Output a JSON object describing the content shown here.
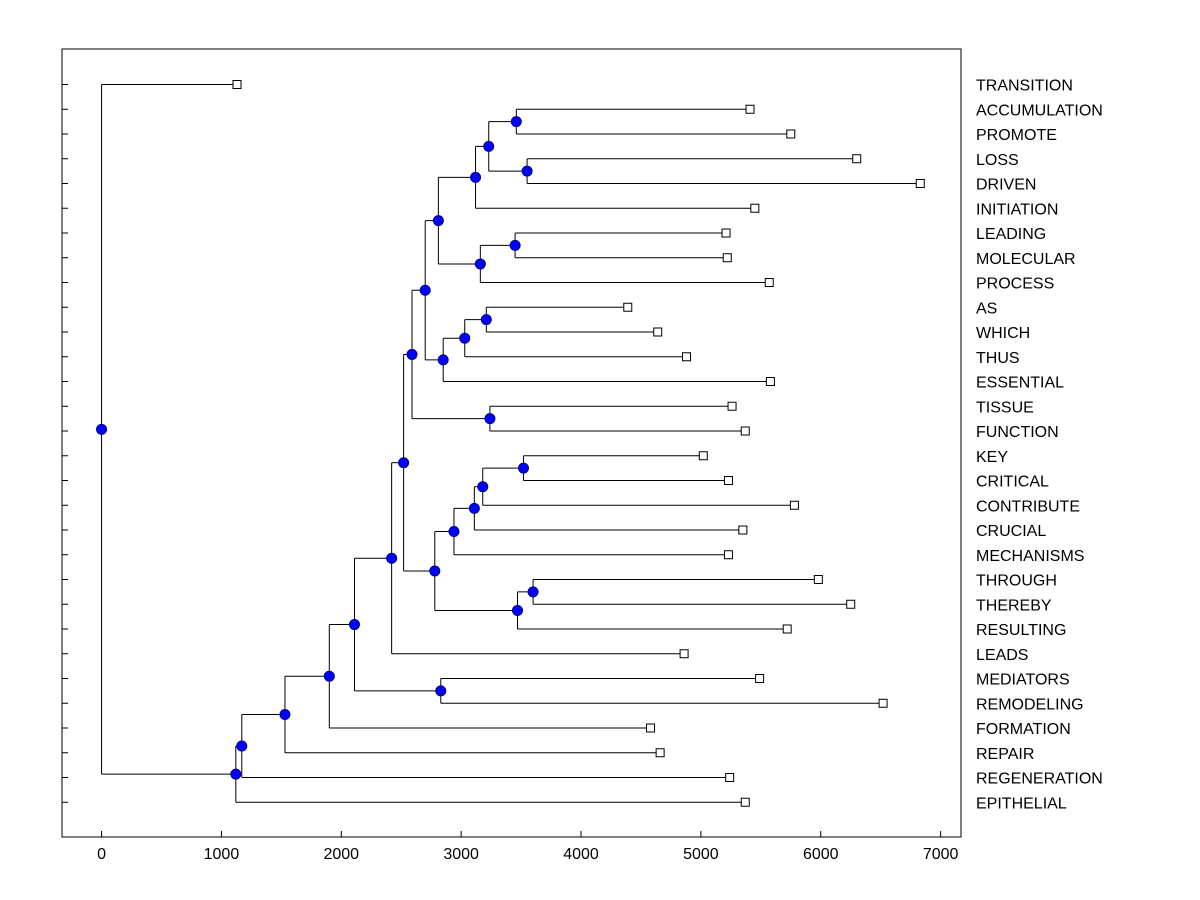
{
  "chart_data": {
    "type": "dendrogram",
    "orientation": "horizontal",
    "title": "",
    "xlabel": "",
    "ylabel": "",
    "xlim": [
      -330,
      7170
    ],
    "xticks": [
      0,
      1000,
      2000,
      3000,
      4000,
      5000,
      6000,
      7000
    ],
    "xtick_labels": [
      "0",
      "1000",
      "2000",
      "3000",
      "4000",
      "5000",
      "6000",
      "7000"
    ],
    "leaves": [
      {
        "label": "TRANSITION",
        "x": 1130
      },
      {
        "label": "ACCUMULATION",
        "x": 5410
      },
      {
        "label": "PROMOTE",
        "x": 5750
      },
      {
        "label": "LOSS",
        "x": 6300
      },
      {
        "label": "DRIVEN",
        "x": 6830
      },
      {
        "label": "INITIATION",
        "x": 5450
      },
      {
        "label": "LEADING",
        "x": 5210
      },
      {
        "label": "MOLECULAR",
        "x": 5220
      },
      {
        "label": "PROCESS",
        "x": 5570
      },
      {
        "label": "AS",
        "x": 4390
      },
      {
        "label": "WHICH",
        "x": 4640
      },
      {
        "label": "THUS",
        "x": 4880
      },
      {
        "label": "ESSENTIAL",
        "x": 5580
      },
      {
        "label": "TISSUE",
        "x": 5260
      },
      {
        "label": "FUNCTION",
        "x": 5370
      },
      {
        "label": "KEY",
        "x": 5020
      },
      {
        "label": "CRITICAL",
        "x": 5230
      },
      {
        "label": "CONTRIBUTE",
        "x": 5780
      },
      {
        "label": "CRUCIAL",
        "x": 5350
      },
      {
        "label": "MECHANISMS",
        "x": 5230
      },
      {
        "label": "THROUGH",
        "x": 5980
      },
      {
        "label": "THEREBY",
        "x": 6250
      },
      {
        "label": "RESULTING",
        "x": 5720
      },
      {
        "label": "LEADS",
        "x": 4860
      },
      {
        "label": "MEDIATORS",
        "x": 5490
      },
      {
        "label": "REMODELING",
        "x": 6520
      },
      {
        "label": "FORMATION",
        "x": 4580
      },
      {
        "label": "REPAIR",
        "x": 4660
      },
      {
        "label": "REGENERATION",
        "x": 5240
      },
      {
        "label": "EPITHELIAL",
        "x": 5370
      }
    ],
    "merges": [
      {
        "id": "m1",
        "x": 3460,
        "children": [
          "L1",
          "L2"
        ]
      },
      {
        "id": "m2",
        "x": 3550,
        "children": [
          "L3",
          "L4"
        ]
      },
      {
        "id": "m3",
        "x": 3230,
        "children": [
          "m1",
          "m2"
        ]
      },
      {
        "id": "m4",
        "x": 3120,
        "children": [
          "m3",
          "L5"
        ]
      },
      {
        "id": "m5",
        "x": 3450,
        "children": [
          "L6",
          "L7"
        ]
      },
      {
        "id": "m6",
        "x": 3160,
        "children": [
          "m5",
          "L8"
        ]
      },
      {
        "id": "m7",
        "x": 2810,
        "children": [
          "m4",
          "m6"
        ]
      },
      {
        "id": "m8",
        "x": 3210,
        "children": [
          "L9",
          "L10"
        ]
      },
      {
        "id": "m9",
        "x": 3030,
        "children": [
          "m8",
          "L11"
        ]
      },
      {
        "id": "m10",
        "x": 2850,
        "children": [
          "m9",
          "L12"
        ]
      },
      {
        "id": "m11",
        "x": 2700,
        "children": [
          "m7",
          "m10"
        ]
      },
      {
        "id": "m12",
        "x": 3240,
        "children": [
          "L13",
          "L14"
        ]
      },
      {
        "id": "m13",
        "x": 2590,
        "children": [
          "m11",
          "m12"
        ]
      },
      {
        "id": "m14",
        "x": 3520,
        "children": [
          "L15",
          "L16"
        ]
      },
      {
        "id": "m15",
        "x": 3180,
        "children": [
          "m14",
          "L17"
        ]
      },
      {
        "id": "m16",
        "x": 3110,
        "children": [
          "m15",
          "L18"
        ]
      },
      {
        "id": "m17",
        "x": 2940,
        "children": [
          "m16",
          "L19"
        ]
      },
      {
        "id": "m18",
        "x": 3600,
        "children": [
          "L20",
          "L21"
        ]
      },
      {
        "id": "m19",
        "x": 3470,
        "children": [
          "m18",
          "L22"
        ]
      },
      {
        "id": "m20",
        "x": 2780,
        "children": [
          "m17",
          "m19"
        ]
      },
      {
        "id": "m21",
        "x": 2520,
        "children": [
          "m13",
          "m20"
        ]
      },
      {
        "id": "m22",
        "x": 2420,
        "children": [
          "m21",
          "L23"
        ]
      },
      {
        "id": "m23",
        "x": 2830,
        "children": [
          "L24",
          "L25"
        ]
      },
      {
        "id": "m24",
        "x": 2110,
        "children": [
          "m22",
          "m23"
        ]
      },
      {
        "id": "m25",
        "x": 1900,
        "children": [
          "m24",
          "L26"
        ]
      },
      {
        "id": "m26",
        "x": 1530,
        "children": [
          "m25",
          "L27"
        ]
      },
      {
        "id": "m27",
        "x": 1170,
        "children": [
          "m26",
          "L28"
        ]
      },
      {
        "id": "m28",
        "x": 1120,
        "children": [
          "m27",
          "L29"
        ]
      },
      {
        "id": "m29",
        "x": 0,
        "children": [
          "L0",
          "m28"
        ]
      }
    ],
    "colors": {
      "line": "#000000",
      "node_fill": "#0000ff",
      "node_stroke": "#000080",
      "leaf_fill": "#ffffff",
      "axis": "#000000"
    }
  }
}
